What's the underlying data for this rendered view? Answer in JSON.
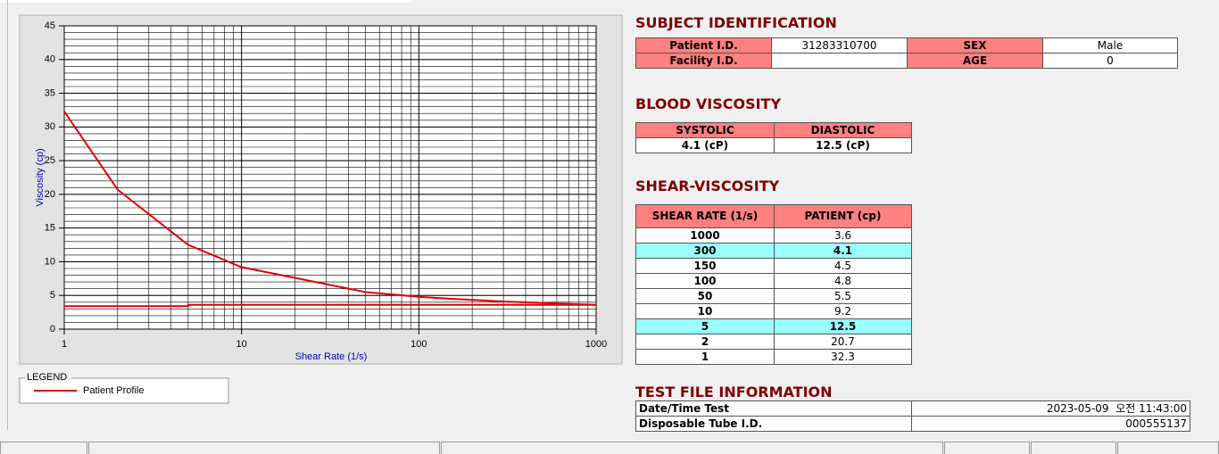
{
  "chart_data": {
    "type": "line",
    "x_scale": "log",
    "x_label": "Shear Rate (1/s)",
    "y_label": "Viscosity (cp)",
    "xlim": [
      1,
      1000
    ],
    "ylim": [
      0,
      45
    ],
    "xticks": [
      1,
      10,
      100,
      1000
    ],
    "yticks": [
      0,
      5,
      10,
      15,
      20,
      25,
      30,
      35,
      40,
      45
    ],
    "grid": true,
    "minor_grid": true,
    "legend_title": "LEGEND",
    "series": [
      {
        "name": "Patient Profile",
        "color": "#e00000",
        "x": [
          1,
          2,
          5,
          10,
          50,
          100,
          150,
          300,
          1000
        ],
        "values": [
          32.3,
          20.7,
          12.5,
          9.2,
          5.5,
          4.8,
          4.5,
          4.1,
          3.6
        ]
      },
      {
        "color": "#e00000",
        "x": [
          1,
          5,
          5,
          1000
        ],
        "values": [
          3.4,
          3.4,
          3.6,
          3.6
        ]
      }
    ]
  },
  "subject_identification": {
    "title": "SUBJECT IDENTIFICATION",
    "rows": [
      [
        "Patient I.D.",
        "31283310700",
        "SEX",
        "Male"
      ],
      [
        "Facility I.D.",
        "",
        "AGE",
        "0"
      ]
    ]
  },
  "blood_viscosity": {
    "title": "BLOOD VISCOSITY",
    "headers": [
      "SYSTOLIC",
      "DIASTOLIC"
    ],
    "values": [
      "4.1 (cP)",
      "12.5 (cP)"
    ]
  },
  "shear_viscosity": {
    "title": "SHEAR-VISCOSITY",
    "headers": [
      "SHEAR RATE (1/s)",
      "PATIENT (cp)"
    ],
    "rows": [
      {
        "shear_rate": 1000,
        "patient": 3.6,
        "highlight": false
      },
      {
        "shear_rate": 300,
        "patient": 4.1,
        "highlight": true
      },
      {
        "shear_rate": 150,
        "patient": 4.5,
        "highlight": false
      },
      {
        "shear_rate": 100,
        "patient": 4.8,
        "highlight": false
      },
      {
        "shear_rate": 50,
        "patient": 5.5,
        "highlight": false
      },
      {
        "shear_rate": 10,
        "patient": 9.2,
        "highlight": false
      },
      {
        "shear_rate": 5,
        "patient": 12.5,
        "highlight": true
      },
      {
        "shear_rate": 2,
        "patient": 20.7,
        "highlight": false
      },
      {
        "shear_rate": 1,
        "patient": 32.3,
        "highlight": false
      }
    ]
  },
  "test_file": {
    "title": "TEST FILE INFORMATION",
    "rows": [
      [
        "Date/Time Test",
        "2023-05-09  오전 11:43:00"
      ],
      [
        "Disposable Tube I.D.",
        "000555137"
      ]
    ]
  }
}
